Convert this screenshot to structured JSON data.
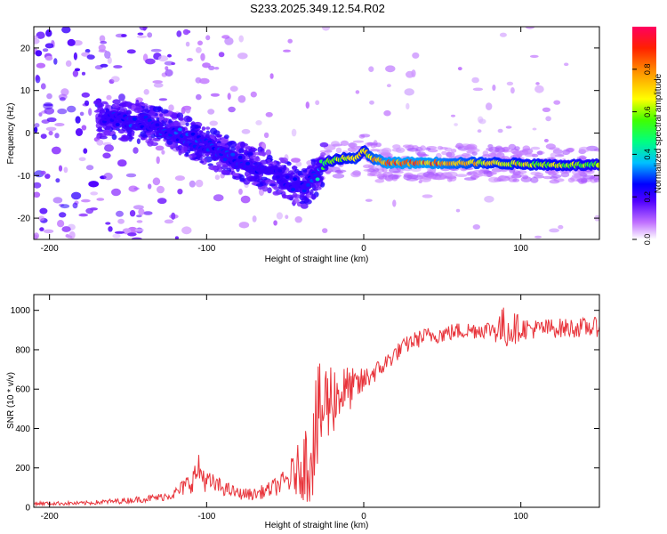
{
  "title": "S233.2025.349.12.54.R02",
  "colors": {
    "axis": "#000000",
    "snr_line": "#e8343b",
    "background": "#ffffff"
  },
  "chart_data": [
    {
      "type": "heatmap",
      "name": "spectrogram",
      "title": "S233.2025.349.12.54.R02",
      "xlabel": "Height of straight line (km)",
      "ylabel": "Frequency (Hz)",
      "xlim": [
        -210,
        150
      ],
      "ylim": [
        -25,
        25
      ],
      "xticks": [
        -200,
        -100,
        0,
        100
      ],
      "xtick_labels": [
        "-200",
        "-100",
        "0",
        "100"
      ],
      "yticks": [
        -20,
        -10,
        0,
        10,
        20
      ],
      "ytick_labels": [
        "-20",
        "-10",
        "0",
        "10",
        "20"
      ],
      "colorbar": {
        "label": "Normalized spectral amplitude",
        "range": [
          0,
          1
        ],
        "ticks": [
          0,
          0.2,
          0.4,
          0.6,
          0.8
        ],
        "tick_labels": [
          "0.0",
          "0.2",
          "0.4",
          "0.6",
          "0.8"
        ],
        "colormap": [
          "#e8e0ff",
          "#7a00ff",
          "#0000ff",
          "#00c0ff",
          "#00ff80",
          "#40ff00",
          "#ffff00",
          "#ff9900",
          "#ff2000",
          "#ff0060"
        ]
      },
      "ridge": {
        "x": [
          -165,
          -150,
          -135,
          -120,
          -105,
          -90,
          -75,
          -60,
          -45,
          -38,
          -32,
          -25,
          -15,
          -5,
          0,
          5,
          15,
          40,
          80,
          120,
          150
        ],
        "freq": [
          3,
          3,
          2,
          0,
          -2,
          -5,
          -7,
          -9,
          -12,
          -13,
          -11,
          -7,
          -6,
          -6,
          -4,
          -6,
          -7,
          -7,
          -7,
          -7.5,
          -7.5
        ],
        "amplitude": [
          0.25,
          0.3,
          0.28,
          0.3,
          0.3,
          0.28,
          0.28,
          0.26,
          0.26,
          0.25,
          0.3,
          0.55,
          0.65,
          0.7,
          0.65,
          0.75,
          0.85,
          0.85,
          0.7,
          0.65,
          0.6
        ]
      }
    },
    {
      "type": "line",
      "name": "snr",
      "xlabel": "Height of straight line (km)",
      "ylabel": "SNR (10 * v/v)",
      "xlim": [
        -210,
        150
      ],
      "ylim": [
        0,
        1080
      ],
      "xticks": [
        -200,
        -100,
        0,
        100
      ],
      "xtick_labels": [
        "-200",
        "-100",
        "0",
        "100"
      ],
      "yticks": [
        0,
        200,
        400,
        600,
        800,
        1000
      ],
      "ytick_labels": [
        "0",
        "200",
        "400",
        "600",
        "800",
        "1000"
      ],
      "series": [
        {
          "name": "SNR",
          "color": "#e8343b",
          "x": [
            -210,
            -180,
            -150,
            -130,
            -120,
            -110,
            -105,
            -100,
            -90,
            -80,
            -70,
            -60,
            -50,
            -40,
            -35,
            -30,
            -25,
            -20,
            -15,
            -10,
            -5,
            0,
            5,
            10,
            20,
            30,
            40,
            50,
            60,
            70,
            80,
            90,
            100,
            110,
            120,
            130,
            150
          ],
          "y": [
            20,
            20,
            35,
            50,
            70,
            130,
            190,
            130,
            100,
            70,
            65,
            90,
            130,
            200,
            250,
            400,
            520,
            560,
            580,
            600,
            610,
            640,
            680,
            700,
            780,
            840,
            870,
            880,
            895,
            900,
            905,
            910,
            910,
            905,
            910,
            910,
            915
          ],
          "noise_amplitude": [
            10,
            10,
            15,
            20,
            30,
            60,
            80,
            60,
            40,
            30,
            30,
            40,
            60,
            150,
            250,
            300,
            260,
            200,
            150,
            120,
            90,
            70,
            60,
            50,
            45,
            45,
            45,
            45,
            45,
            45,
            45,
            120,
            60,
            50,
            50,
            50,
            50
          ]
        }
      ]
    }
  ]
}
